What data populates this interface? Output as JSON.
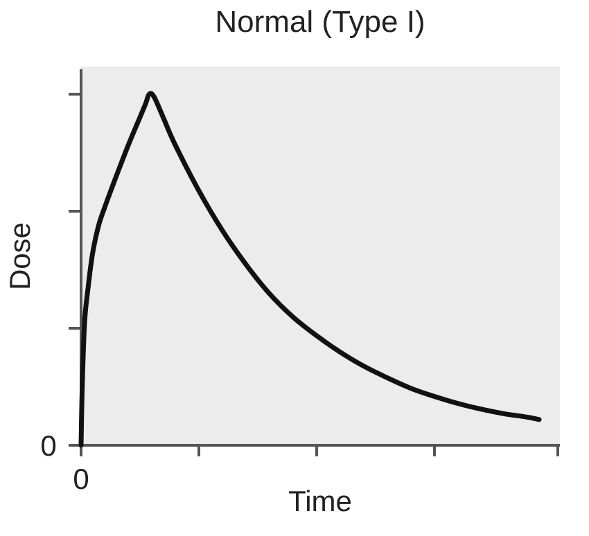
{
  "chart_data": {
    "type": "line",
    "title": "Normal (Type I)",
    "xlabel": "Time",
    "ylabel": "Dose",
    "xlim": [
      0,
      4
    ],
    "ylim": [
      0,
      3
    ],
    "x_tick_labels": [
      {
        "value": 0,
        "label": "0"
      }
    ],
    "y_tick_labels": [
      {
        "value": 0,
        "label": "0"
      }
    ],
    "x_ticks": [
      0,
      1,
      2,
      3,
      4
    ],
    "y_ticks": [
      0,
      1,
      2,
      3
    ],
    "grid": false,
    "series": [
      {
        "color": "#111111",
        "x": [
          0.0,
          0.01,
          0.03,
          0.06,
          0.1,
          0.15,
          0.2,
          0.3,
          0.4,
          0.5,
          0.55,
          0.58,
          0.62,
          0.7,
          0.8,
          1.0,
          1.2,
          1.4,
          1.6,
          1.8,
          2.0,
          2.2,
          2.4,
          2.6,
          2.8,
          3.0,
          3.2,
          3.4,
          3.6,
          3.8,
          3.9
        ],
        "y": [
          0.0,
          0.5,
          1.05,
          1.35,
          1.65,
          1.88,
          2.03,
          2.3,
          2.56,
          2.8,
          2.92,
          3.0,
          2.98,
          2.8,
          2.57,
          2.18,
          1.84,
          1.55,
          1.3,
          1.1,
          0.94,
          0.8,
          0.68,
          0.58,
          0.49,
          0.42,
          0.36,
          0.31,
          0.27,
          0.24,
          0.22
        ]
      }
    ]
  },
  "colors": {
    "plot_background": "#ececec",
    "axis": "#555555",
    "line": "#111111"
  }
}
